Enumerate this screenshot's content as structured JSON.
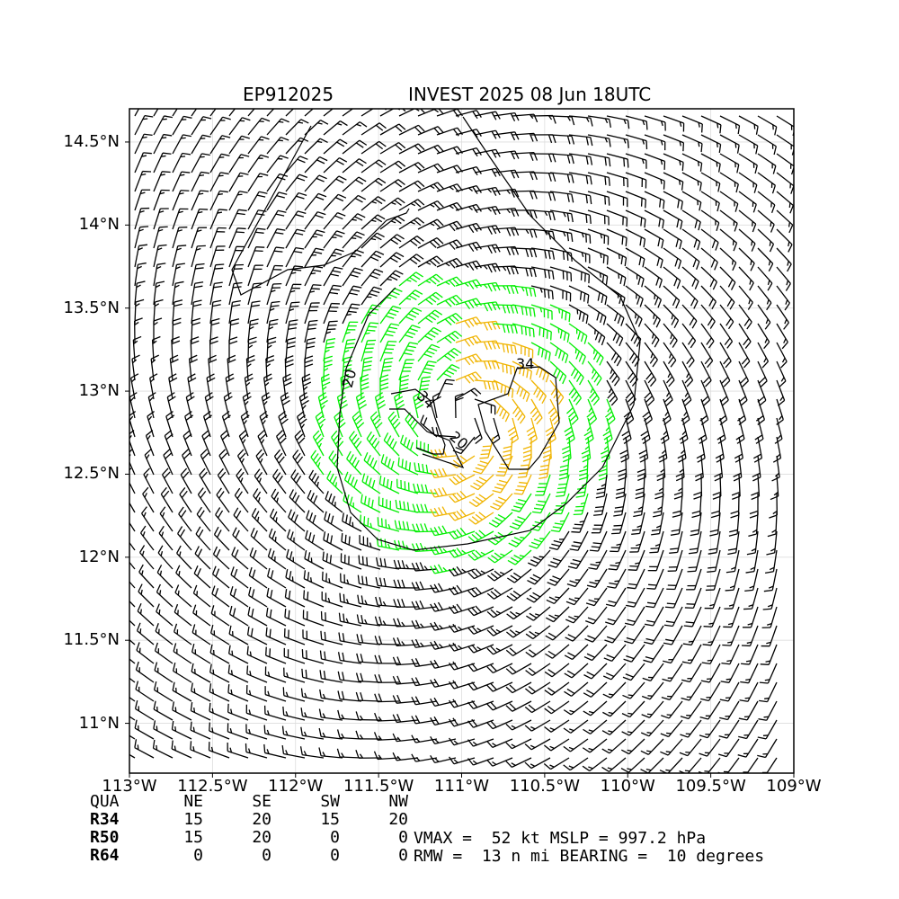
{
  "header": {
    "storm_id": "EP912025",
    "title": "INVEST 2025 08 Jun 18UTC"
  },
  "map": {
    "lon_range": [
      -113,
      -109
    ],
    "lat_range": [
      10.7,
      14.7
    ],
    "center": {
      "lon": -111.0,
      "lat": 12.83
    },
    "lat_ticks": [
      {
        "value": 14.5,
        "label": "14.5°N"
      },
      {
        "value": 14.0,
        "label": "14°N"
      },
      {
        "value": 13.5,
        "label": "13.5°N"
      },
      {
        "value": 13.0,
        "label": "13°N"
      },
      {
        "value": 12.5,
        "label": "12.5°N"
      },
      {
        "value": 12.0,
        "label": "12°N"
      },
      {
        "value": 11.5,
        "label": "11.5°N"
      },
      {
        "value": 11.0,
        "label": "11°N"
      }
    ],
    "lon_ticks": [
      {
        "value": -113.0,
        "label": "113°W"
      },
      {
        "value": -112.5,
        "label": "112.5°W"
      },
      {
        "value": -112.0,
        "label": "112°W"
      },
      {
        "value": -111.5,
        "label": "111.5°W"
      },
      {
        "value": -111.0,
        "label": "111°W"
      },
      {
        "value": -110.5,
        "label": "110.5°W"
      },
      {
        "value": -110.0,
        "label": "110°W"
      },
      {
        "value": -109.5,
        "label": "109.5°W"
      },
      {
        "value": -109.0,
        "label": "109°W"
      }
    ],
    "contour_labels": [
      "20",
      "34",
      "20",
      "34"
    ],
    "colors": {
      "barb_default": "#000000",
      "barb_34kt": "#00ee00",
      "barb_50kt": "#f0b400",
      "grid": "#dddddd"
    }
  },
  "radii_table": {
    "headers": [
      "QUA",
      "NE",
      "SE",
      "SW",
      "NW"
    ],
    "rows": [
      [
        "R34",
        "15",
        "20",
        "15",
        "20"
      ],
      [
        "R50",
        "15",
        "20",
        "0",
        "0"
      ],
      [
        "R64",
        "0",
        "0",
        "0",
        "0"
      ]
    ]
  },
  "storm_info": {
    "line1": "VMAX =  52 kt MSLP = 997.2 hPa",
    "line2": "RMW =  13 n mi BEARING =  10 degrees"
  }
}
